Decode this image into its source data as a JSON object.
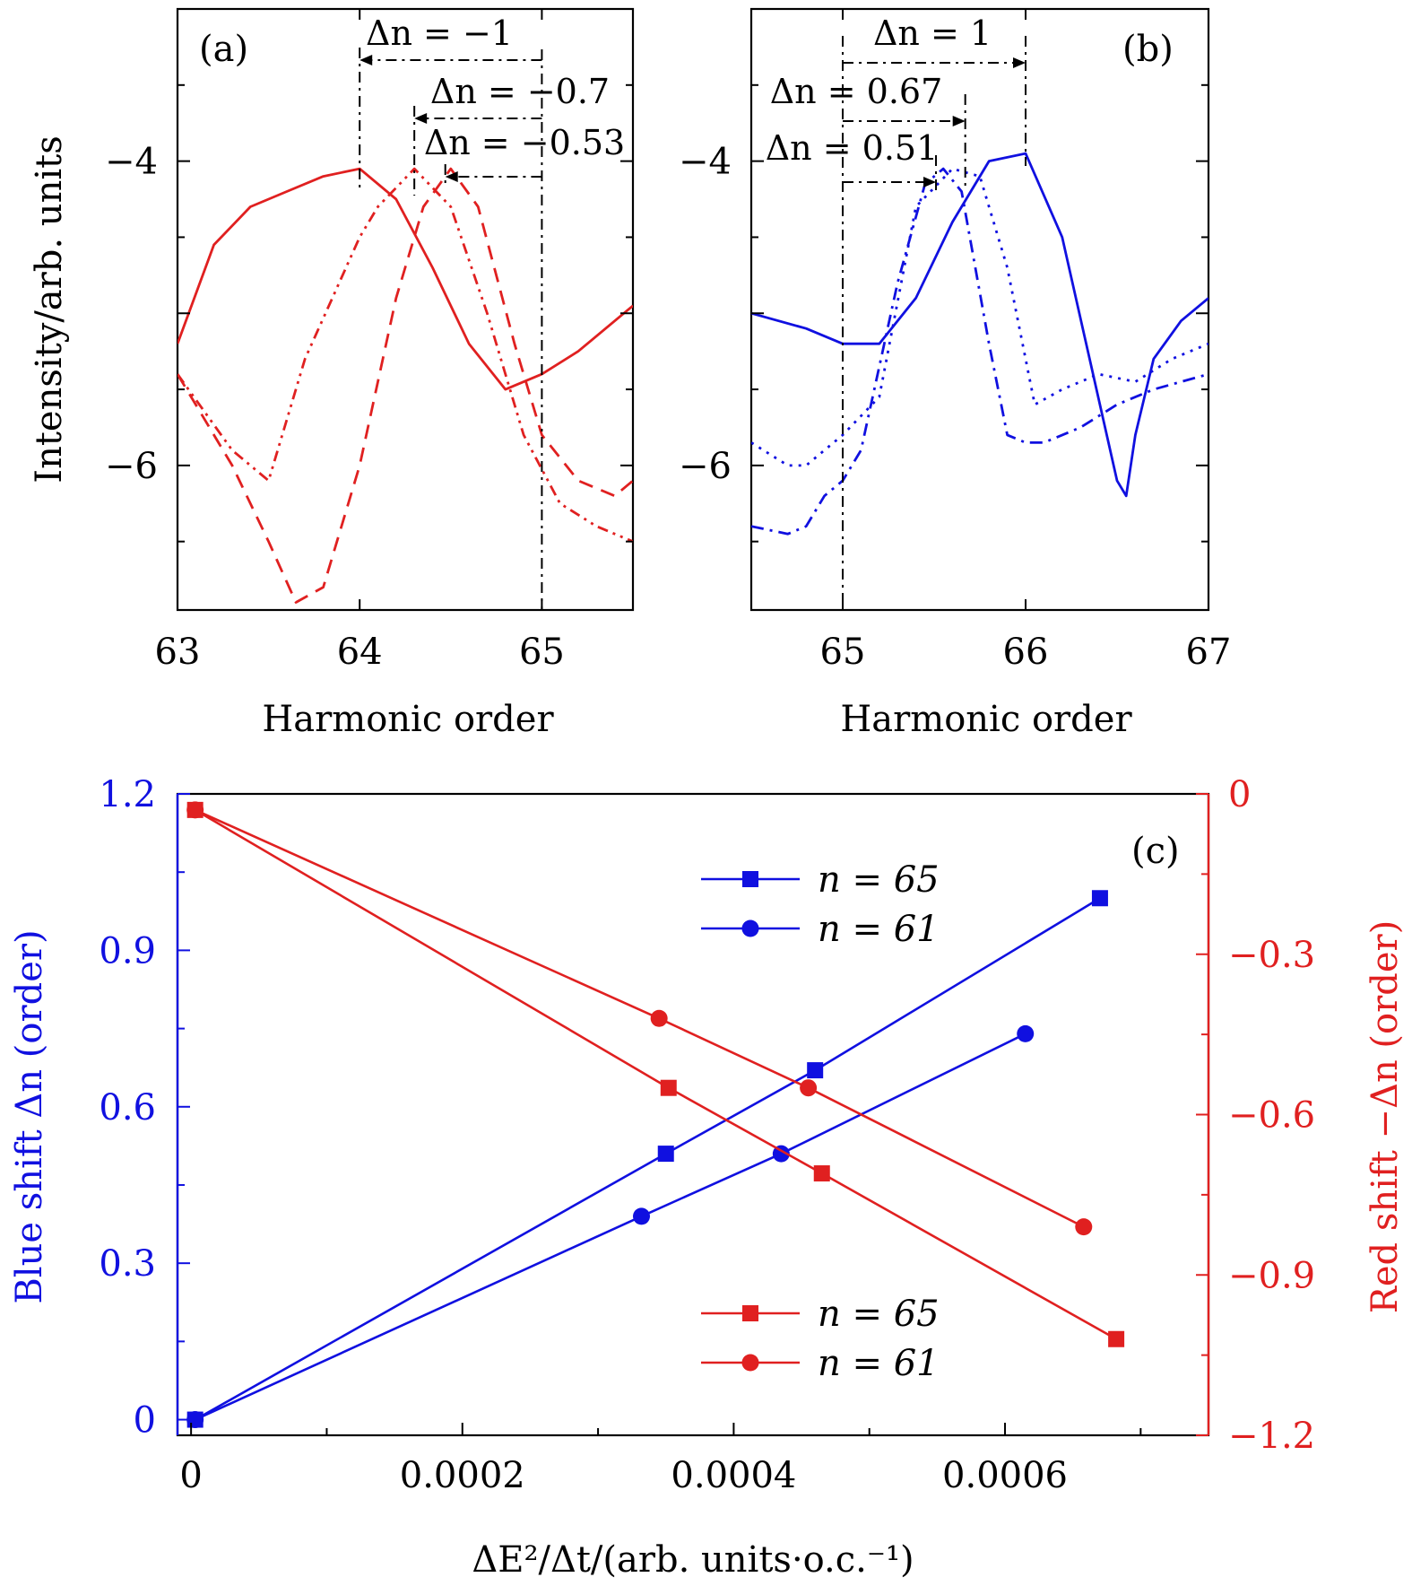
{
  "chart_data": [
    {
      "panel_label": "(a)",
      "type": "line",
      "xlabel": "Harmonic order",
      "ylabel": "Intensity/arb. units",
      "xlim": [
        63,
        65.5
      ],
      "ylim": [
        -6.95,
        -3.0
      ],
      "xticks": [
        63,
        64,
        65
      ],
      "xtick_labels": [
        "63",
        "64",
        "65"
      ],
      "yticks": [
        -4,
        -6
      ],
      "ytick_labels": [
        "−4",
        "−6"
      ],
      "color": "#e02020",
      "series": [
        {
          "style": "solid",
          "x": [
            63.0,
            63.2,
            63.4,
            63.6,
            63.8,
            64.0,
            64.2,
            64.4,
            64.6,
            64.8,
            65.0,
            65.2,
            65.5
          ],
          "y": [
            -5.2,
            -4.55,
            -4.3,
            -4.2,
            -4.1,
            -4.05,
            -4.25,
            -4.7,
            -5.2,
            -5.5,
            -5.4,
            -5.25,
            -4.95
          ]
        },
        {
          "style": "dash-dot-dot",
          "x": [
            63.0,
            63.3,
            63.5,
            63.7,
            63.85,
            64.0,
            64.1,
            64.3,
            64.5,
            64.7,
            64.9,
            65.1,
            65.3,
            65.5
          ],
          "y": [
            -5.4,
            -5.9,
            -6.1,
            -5.3,
            -4.9,
            -4.5,
            -4.3,
            -4.05,
            -4.3,
            -5.0,
            -5.8,
            -6.25,
            -6.4,
            -6.5
          ]
        },
        {
          "style": "dashed",
          "x": [
            63.0,
            63.3,
            63.5,
            63.65,
            63.8,
            64.0,
            64.2,
            64.35,
            64.5,
            64.65,
            64.85,
            65.0,
            65.2,
            65.4,
            65.5
          ],
          "y": [
            -5.4,
            -6.0,
            -6.5,
            -6.9,
            -6.8,
            -6.0,
            -4.9,
            -4.3,
            -4.05,
            -4.3,
            -5.2,
            -5.8,
            -6.1,
            -6.2,
            -6.1
          ]
        }
      ],
      "annotations": [
        {
          "text": "Δn = −1",
          "from_x": 65.0,
          "to_x": 64.0
        },
        {
          "text": "Δn = −0.7",
          "from_x": 65.0,
          "to_x": 64.3
        },
        {
          "text": "Δn = −0.53",
          "from_x": 65.0,
          "to_x": 64.47
        }
      ]
    },
    {
      "panel_label": "(b)",
      "type": "line",
      "xlabel": "Harmonic order",
      "xlim": [
        64.5,
        67
      ],
      "ylim": [
        -6.95,
        -3.0
      ],
      "xticks": [
        65,
        66,
        67
      ],
      "xtick_labels": [
        "65",
        "66",
        "67"
      ],
      "yticks": [
        -4,
        -6
      ],
      "ytick_labels": [
        "−4",
        "−6"
      ],
      "color": "#1010e0",
      "series": [
        {
          "style": "solid",
          "x": [
            64.5,
            64.8,
            65.0,
            65.2,
            65.4,
            65.6,
            65.8,
            66.0,
            66.2,
            66.35,
            66.5,
            66.55,
            66.6,
            66.7,
            66.85,
            67.0
          ],
          "y": [
            -5.0,
            -5.1,
            -5.2,
            -5.2,
            -4.9,
            -4.4,
            -4.0,
            -3.95,
            -4.5,
            -5.3,
            -6.1,
            -6.2,
            -5.8,
            -5.3,
            -5.05,
            -4.9
          ]
        },
        {
          "style": "dotted",
          "x": [
            64.5,
            64.7,
            64.8,
            65.0,
            65.2,
            65.4,
            65.6,
            65.75,
            65.9,
            66.05,
            66.2,
            66.4,
            66.6,
            66.8,
            67.0
          ],
          "y": [
            -5.85,
            -6.0,
            -6.0,
            -5.8,
            -5.55,
            -4.3,
            -4.05,
            -4.1,
            -4.7,
            -5.6,
            -5.5,
            -5.4,
            -5.45,
            -5.3,
            -5.2
          ]
        },
        {
          "style": "dash-dot",
          "x": [
            64.5,
            64.7,
            64.8,
            64.9,
            65.0,
            65.1,
            65.3,
            65.45,
            65.55,
            65.65,
            65.8,
            65.9,
            66.0,
            66.1,
            66.3,
            66.5,
            66.7,
            67.0
          ],
          "y": [
            -6.4,
            -6.45,
            -6.4,
            -6.2,
            -6.1,
            -5.9,
            -4.8,
            -4.15,
            -4.05,
            -4.2,
            -5.2,
            -5.8,
            -5.85,
            -5.85,
            -5.75,
            -5.6,
            -5.5,
            -5.4
          ]
        }
      ],
      "annotations": [
        {
          "text": "Δn = 1",
          "from_x": 65.0,
          "to_x": 66.0
        },
        {
          "text": "Δn = 0.67",
          "from_x": 65.0,
          "to_x": 65.67
        },
        {
          "text": "Δn = 0.51",
          "from_x": 65.0,
          "to_x": 65.51
        }
      ]
    },
    {
      "panel_label": "(c)",
      "type": "line",
      "xlabel": "ΔE²/Δt/(arb. units·o.c.⁻¹)",
      "ylabel_left": "Blue shift Δn (order)",
      "ylabel_right": "Red shift −Δn (order)",
      "xlim": [
        -1e-05,
        0.00075
      ],
      "xticks": [
        0,
        0.0002,
        0.0004,
        0.0006
      ],
      "xtick_labels": [
        "0",
        "0.0002",
        "0.0004",
        "0.0006"
      ],
      "ylim_left": [
        -0.03,
        1.2
      ],
      "yticks_left": [
        0,
        0.3,
        0.6,
        0.9,
        1.2
      ],
      "ytick_labels_left": [
        "0",
        "0.3",
        "0.6",
        "0.9",
        "1.2"
      ],
      "ylim_right": [
        -1.2,
        0
      ],
      "yticks_right": [
        0,
        -0.3,
        -0.6,
        -0.9,
        -1.2
      ],
      "ytick_labels_right": [
        "0",
        "−0.3",
        "−0.6",
        "−0.9",
        "−1.2"
      ],
      "left_color": "#1010e0",
      "right_color": "#e02020",
      "series": [
        {
          "name": "n = 65",
          "axis": "left",
          "marker": "square",
          "color": "#1010e0",
          "x": [
            3e-06,
            0.00035,
            0.00046,
            0.00067
          ],
          "y": [
            0.0,
            0.51,
            0.67,
            1.0
          ]
        },
        {
          "name": "n = 61",
          "axis": "left",
          "marker": "circle",
          "color": "#1010e0",
          "x": [
            3e-06,
            0.000332,
            0.000435,
            0.000615
          ],
          "y": [
            0.0,
            0.39,
            0.51,
            0.74
          ]
        },
        {
          "name": "n = 65",
          "axis": "right",
          "marker": "square",
          "color": "#e02020",
          "x": [
            3e-06,
            0.000352,
            0.000465,
            0.000682
          ],
          "y": [
            -0.03,
            -0.55,
            -0.71,
            -1.02
          ]
        },
        {
          "name": "n = 61",
          "axis": "right",
          "marker": "circle",
          "color": "#e02020",
          "x": [
            3e-06,
            0.000345,
            0.000455,
            0.000658
          ],
          "y": [
            -0.03,
            -0.42,
            -0.55,
            -0.81
          ]
        }
      ],
      "legend_blue": [
        "n = 65",
        "n = 61"
      ],
      "legend_red": [
        "n = 65",
        "n = 61"
      ]
    }
  ]
}
